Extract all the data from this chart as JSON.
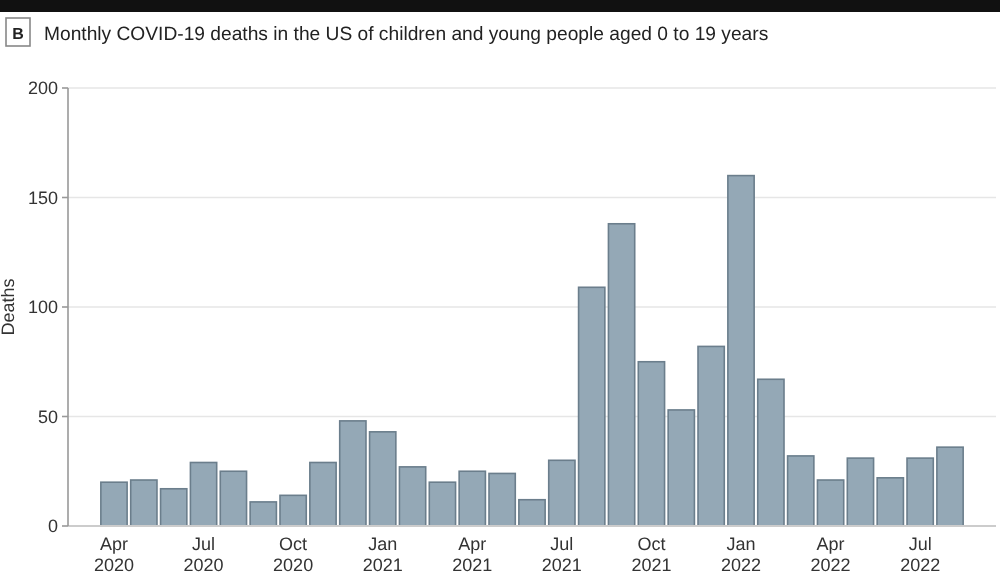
{
  "chart_data": {
    "type": "bar",
    "title": "Monthly COVID-19 deaths in the US of children and young people aged 0 to 19 years",
    "annotations": [
      "B"
    ],
    "ylabel": "Deaths",
    "categories": [
      "Apr 2020",
      null,
      null,
      "Jul 2020",
      null,
      null,
      "Oct 2020",
      null,
      null,
      "Jan 2021",
      null,
      null,
      "Apr 2021",
      null,
      null,
      "Jul 2021",
      null,
      null,
      "Oct 2021",
      null,
      null,
      "Jan 2022",
      null,
      null,
      "Apr 2022",
      null,
      null,
      "Jul 2022",
      null
    ],
    "values": [
      20,
      21,
      17,
      29,
      25,
      11,
      14,
      29,
      48,
      43,
      27,
      20,
      25,
      24,
      12,
      30,
      109,
      138,
      75,
      53,
      82,
      160,
      67,
      32,
      21,
      31,
      22,
      31,
      36
    ],
    "color": "#94a8b6",
    "ylim": [
      0,
      200
    ],
    "yticks": [
      0,
      50,
      100,
      150,
      200
    ],
    "grid": "y"
  }
}
